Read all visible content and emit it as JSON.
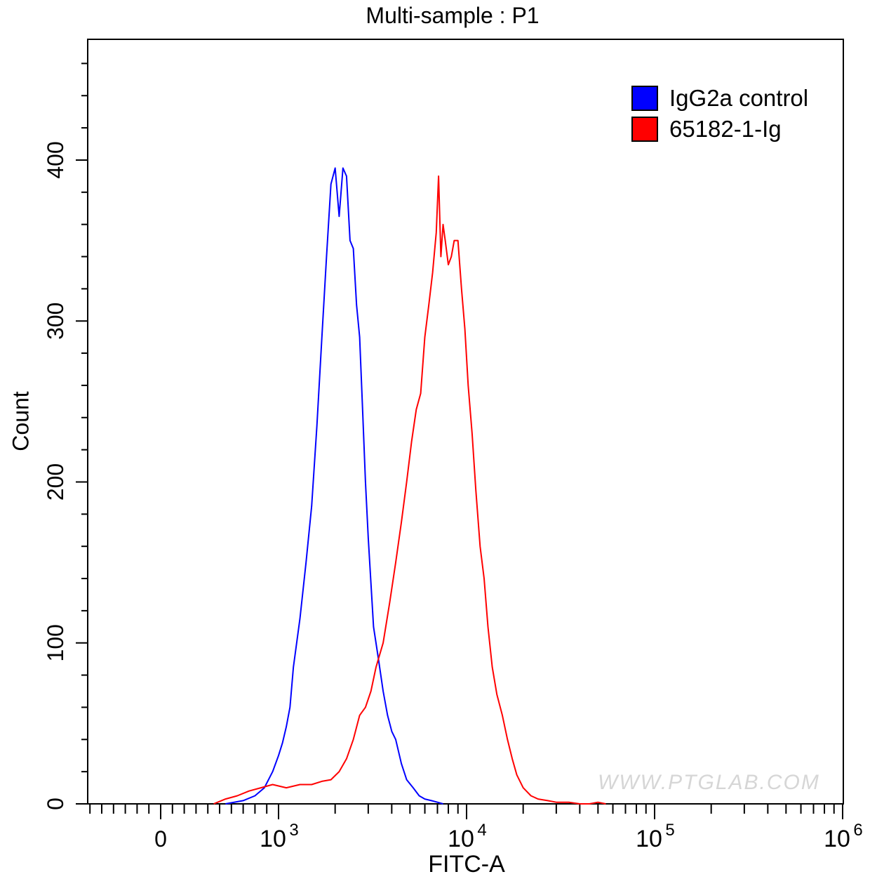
{
  "chart_data": {
    "type": "line",
    "title": "Multi-sample : P1",
    "xlabel": "FITC-A",
    "ylabel": "Count",
    "x_scale": "biexponential",
    "ylim": [
      0,
      475
    ],
    "y_ticks": [
      0,
      100,
      200,
      300,
      400
    ],
    "x_tick_labels": [
      {
        "value": 0,
        "label": "0"
      },
      {
        "value": 1000,
        "base": "10",
        "exp": "3"
      },
      {
        "value": 10000,
        "base": "10",
        "exp": "4"
      },
      {
        "value": 100000,
        "base": "10",
        "exp": "5"
      },
      {
        "value": 1000000,
        "base": "10",
        "exp": "6"
      }
    ],
    "legend_position": "top-right",
    "grid": false,
    "series": [
      {
        "name": "IgG2a control",
        "color": "#0000ff",
        "x": [
          550,
          700,
          800,
          880,
          950,
          1000,
          1050,
          1100,
          1150,
          1200,
          1300,
          1400,
          1500,
          1600,
          1700,
          1800,
          1900,
          2000,
          2100,
          2200,
          2300,
          2400,
          2500,
          2600,
          2700,
          2800,
          2900,
          3000,
          3200,
          3400,
          3600,
          3800,
          4000,
          4200,
          4500,
          4800,
          5200,
          5600,
          6000,
          6500,
          7000,
          7500
        ],
        "values": [
          0,
          2,
          5,
          10,
          20,
          30,
          38,
          48,
          60,
          85,
          115,
          150,
          185,
          235,
          290,
          340,
          385,
          395,
          365,
          395,
          390,
          350,
          345,
          310,
          290,
          245,
          200,
          165,
          110,
          90,
          70,
          55,
          45,
          40,
          25,
          15,
          10,
          5,
          3,
          2,
          1,
          0
        ]
      },
      {
        "name": "65182-1-Ig",
        "color": "#ff0000",
        "x": [
          450,
          550,
          650,
          750,
          850,
          950,
          1100,
          1300,
          1500,
          1700,
          1900,
          2100,
          2300,
          2500,
          2700,
          2900,
          3100,
          3300,
          3600,
          3900,
          4200,
          4500,
          4800,
          5100,
          5400,
          5700,
          6000,
          6300,
          6600,
          6900,
          7100,
          7300,
          7500,
          7700,
          8000,
          8300,
          8600,
          9000,
          9400,
          9800,
          10200,
          10700,
          11200,
          11800,
          12400,
          13000,
          13700,
          14500,
          15500,
          16500,
          17500,
          18500,
          20000,
          22000,
          24000,
          27000,
          30000,
          35000,
          40000,
          45000,
          50000,
          55000
        ],
        "values": [
          0,
          3,
          5,
          8,
          10,
          12,
          10,
          12,
          12,
          14,
          15,
          20,
          28,
          40,
          55,
          60,
          70,
          85,
          100,
          125,
          150,
          175,
          200,
          225,
          245,
          255,
          290,
          310,
          330,
          355,
          390,
          340,
          360,
          350,
          335,
          340,
          350,
          350,
          320,
          295,
          260,
          230,
          195,
          160,
          140,
          110,
          85,
          68,
          55,
          40,
          28,
          18,
          10,
          5,
          3,
          2,
          1,
          1,
          0,
          0,
          1,
          0
        ]
      }
    ]
  },
  "watermark": "WWW.PTGLAB.COM"
}
